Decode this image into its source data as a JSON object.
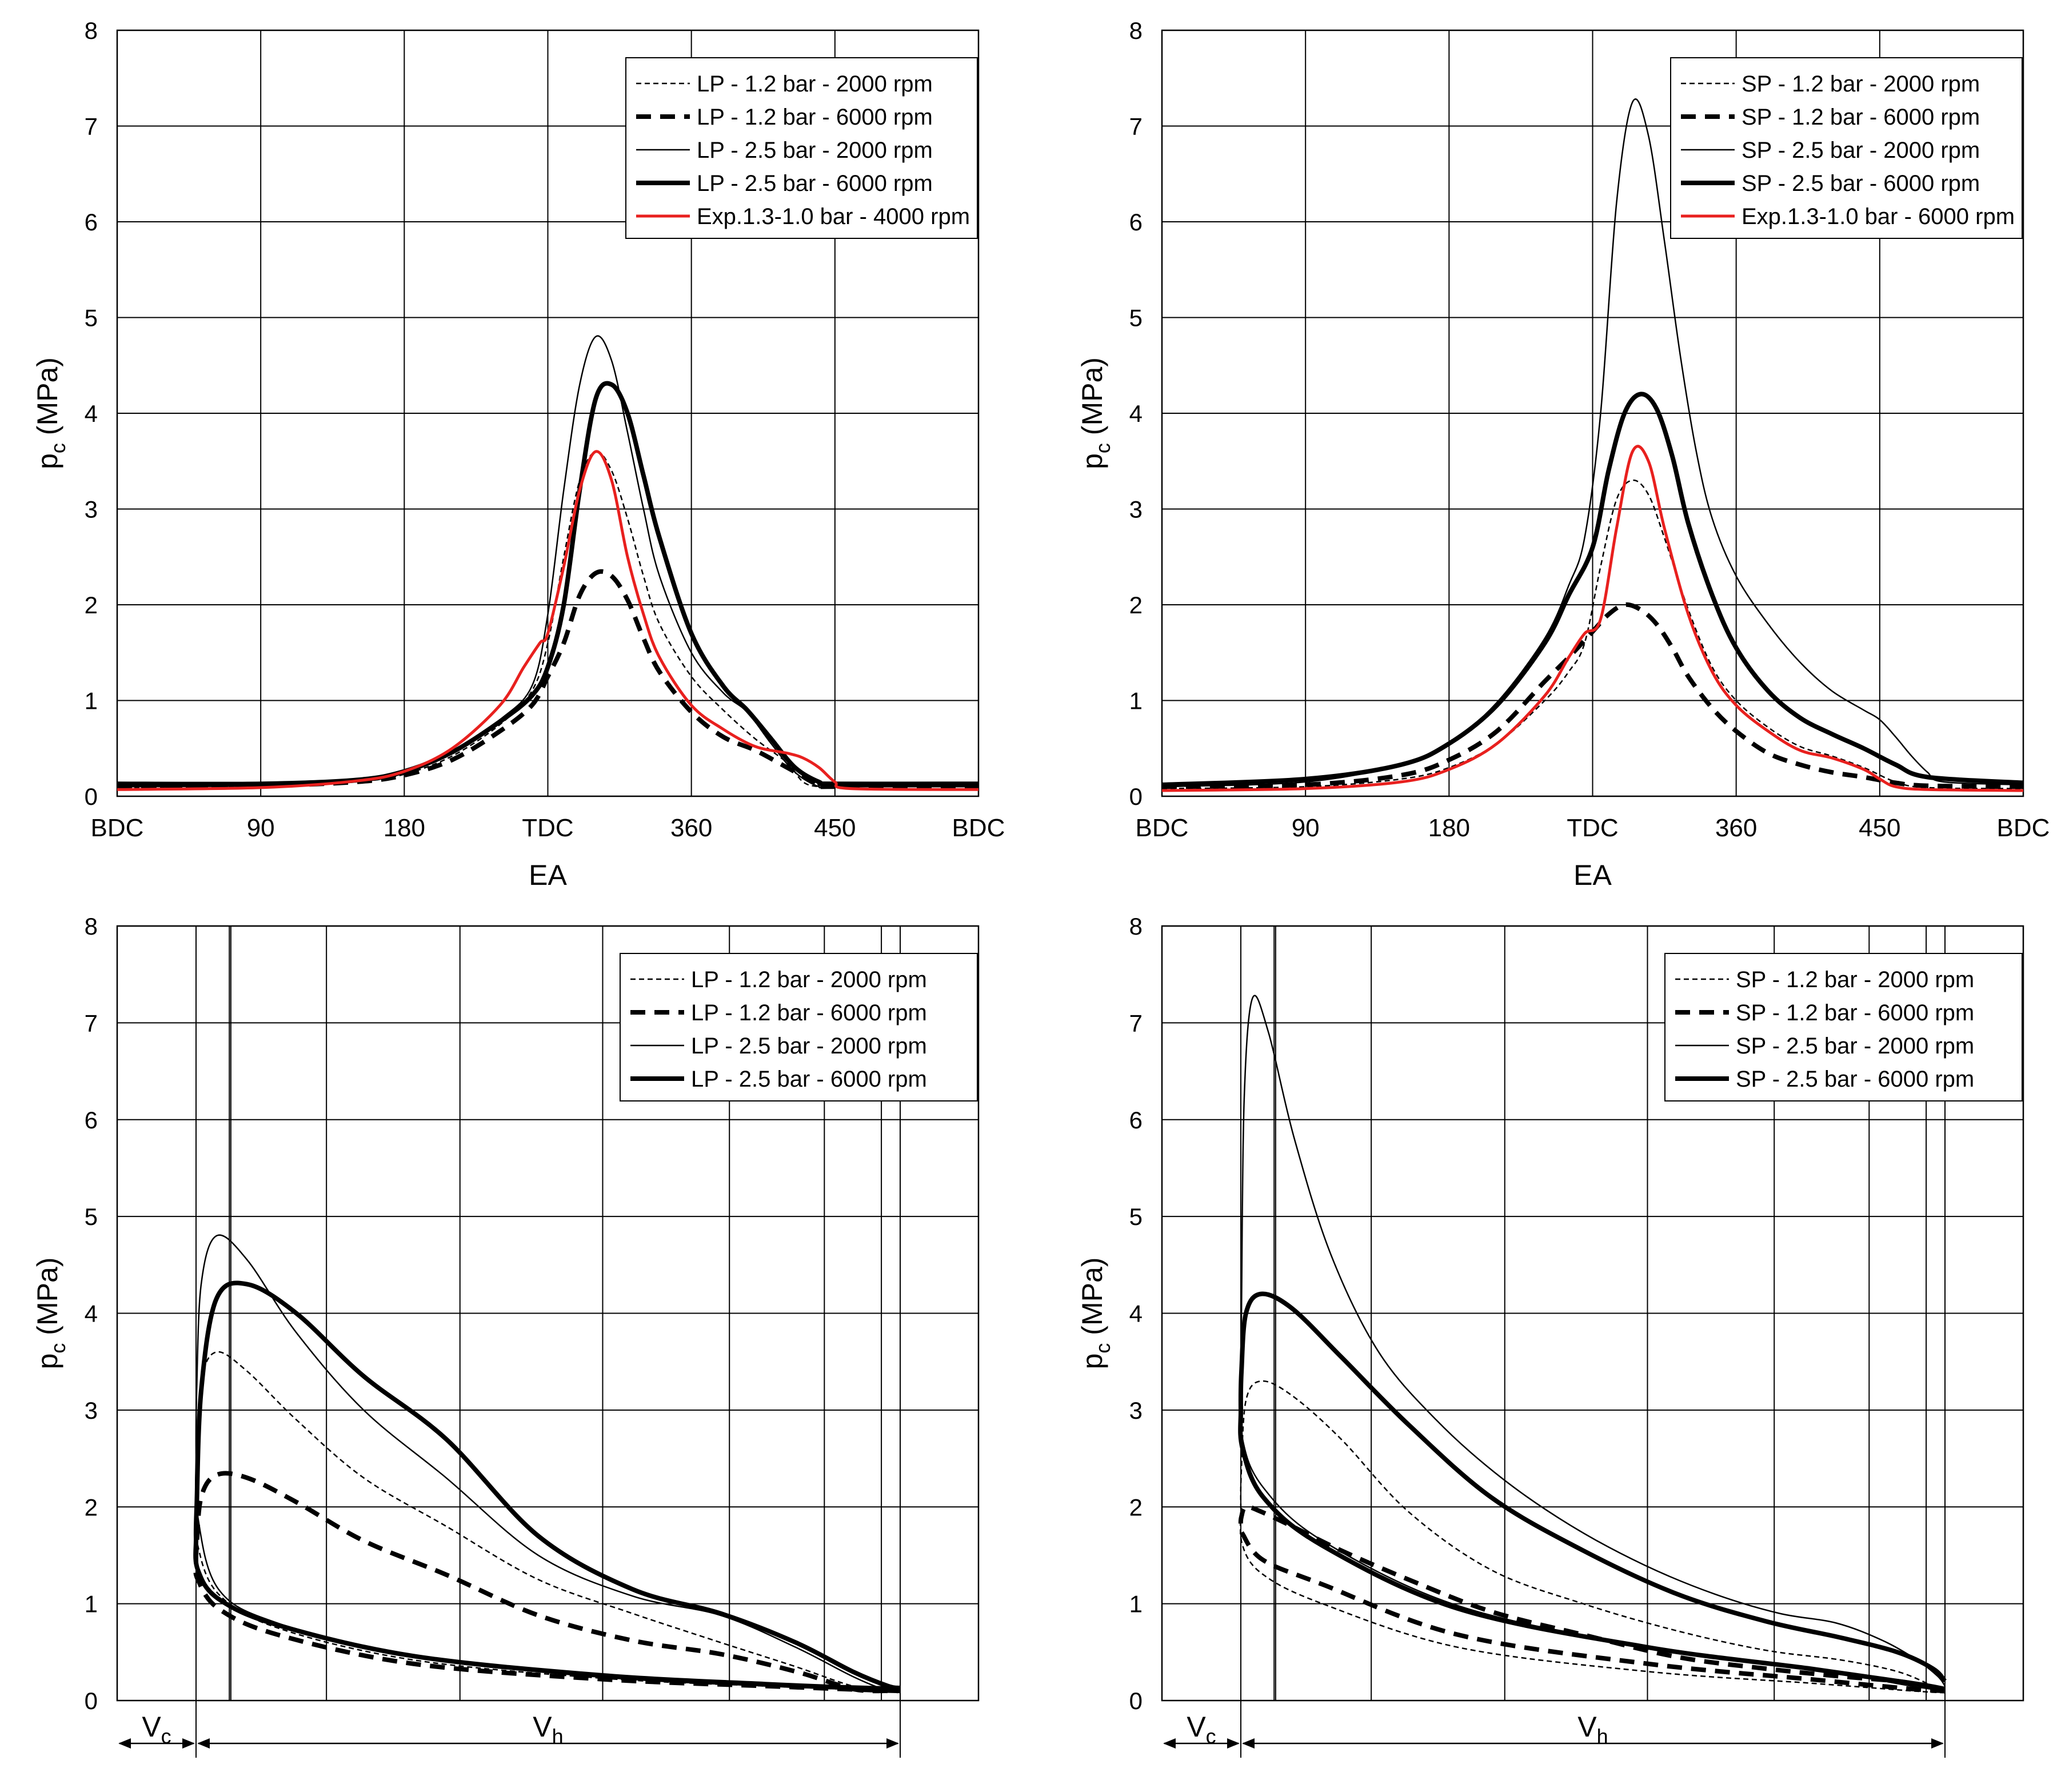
{
  "chart_data": [
    {
      "id": "p1",
      "type": "line",
      "xmode": "angle",
      "ylabel_main": "p",
      "ylabel_sub": "c",
      "ylabel_units": " (MPa)",
      "xlabel": "EA",
      "xlim": [
        0,
        540
      ],
      "ylim": [
        0,
        8
      ],
      "grid": true,
      "xticks": [
        {
          "v": 0,
          "label": "BDC"
        },
        {
          "v": 90,
          "label": "90"
        },
        {
          "v": 180,
          "label": "180"
        },
        {
          "v": 270,
          "label": "TDC"
        },
        {
          "v": 360,
          "label": "360"
        },
        {
          "v": 450,
          "label": "450"
        },
        {
          "v": 540,
          "label": "BDC"
        }
      ],
      "yticks": [
        0,
        1,
        2,
        3,
        4,
        5,
        6,
        7,
        8
      ],
      "legend_position": "top-right",
      "series": [
        {
          "name": "LP - 1.2 bar - 2000 rpm",
          "style": "thin-dashed",
          "x": [
            0,
            90,
            150,
            180,
            210,
            240,
            260,
            270,
            280,
            290,
            300,
            310,
            320,
            330,
            340,
            360,
            380,
            400,
            420,
            430,
            440,
            450,
            540
          ],
          "y": [
            0.09,
            0.1,
            0.15,
            0.23,
            0.42,
            0.75,
            1.1,
            1.6,
            2.5,
            3.3,
            3.6,
            3.4,
            2.9,
            2.3,
            1.8,
            1.25,
            0.9,
            0.6,
            0.35,
            0.15,
            0.1,
            0.1,
            0.1
          ]
        },
        {
          "name": "LP - 1.2 bar - 6000 rpm",
          "style": "thick-dashed",
          "x": [
            0,
            90,
            150,
            180,
            210,
            240,
            260,
            270,
            280,
            290,
            300,
            310,
            320,
            330,
            340,
            360,
            380,
            400,
            420,
            440,
            450,
            540
          ],
          "y": [
            0.1,
            0.11,
            0.15,
            0.22,
            0.38,
            0.68,
            0.95,
            1.25,
            1.6,
            2.1,
            2.33,
            2.3,
            2.05,
            1.65,
            1.3,
            0.88,
            0.62,
            0.48,
            0.3,
            0.12,
            0.1,
            0.1
          ]
        },
        {
          "name": "LP - 2.5 bar - 2000 rpm",
          "style": "thin-solid",
          "x": [
            0,
            90,
            150,
            180,
            210,
            240,
            260,
            270,
            280,
            290,
            300,
            310,
            320,
            330,
            340,
            360,
            380,
            395,
            410,
            425,
            440,
            450,
            540
          ],
          "y": [
            0.1,
            0.11,
            0.15,
            0.24,
            0.45,
            0.8,
            1.15,
            1.9,
            3.2,
            4.3,
            4.8,
            4.55,
            3.8,
            3.0,
            2.3,
            1.5,
            1.08,
            0.88,
            0.55,
            0.25,
            0.1,
            0.1,
            0.1
          ]
        },
        {
          "name": "LP - 2.5 bar - 6000 rpm",
          "style": "thick-solid",
          "x": [
            0,
            90,
            150,
            180,
            210,
            240,
            260,
            270,
            280,
            290,
            300,
            310,
            320,
            330,
            340,
            360,
            380,
            395,
            410,
            425,
            440,
            450,
            540
          ],
          "y": [
            0.13,
            0.13,
            0.17,
            0.26,
            0.46,
            0.78,
            1.05,
            1.35,
            2.0,
            3.2,
            4.15,
            4.3,
            4.0,
            3.35,
            2.7,
            1.7,
            1.15,
            0.9,
            0.6,
            0.3,
            0.15,
            0.13,
            0.13
          ]
        },
        {
          "name": "Exp.1.3-1.0 bar - 4000 rpm",
          "style": "red",
          "x": [
            0,
            90,
            150,
            180,
            210,
            240,
            255,
            265,
            270,
            280,
            290,
            300,
            310,
            320,
            330,
            340,
            360,
            380,
            400,
            420,
            430,
            440,
            450,
            460,
            540
          ],
          "y": [
            0.07,
            0.09,
            0.16,
            0.26,
            0.5,
            0.95,
            1.35,
            1.6,
            1.7,
            2.4,
            3.2,
            3.6,
            3.3,
            2.5,
            1.9,
            1.45,
            0.95,
            0.7,
            0.52,
            0.45,
            0.4,
            0.3,
            0.15,
            0.08,
            0.07
          ]
        }
      ]
    },
    {
      "id": "p2",
      "type": "line",
      "xmode": "angle",
      "ylabel_main": "p",
      "ylabel_sub": "c",
      "ylabel_units": " (MPa)",
      "xlabel": "EA",
      "xlim": [
        0,
        540
      ],
      "ylim": [
        0,
        8
      ],
      "grid": true,
      "xticks": [
        {
          "v": 0,
          "label": "BDC"
        },
        {
          "v": 90,
          "label": "90"
        },
        {
          "v": 180,
          "label": "180"
        },
        {
          "v": 270,
          "label": "TDC"
        },
        {
          "v": 360,
          "label": "360"
        },
        {
          "v": 450,
          "label": "450"
        },
        {
          "v": 540,
          "label": "BDC"
        }
      ],
      "yticks": [
        0,
        1,
        2,
        3,
        4,
        5,
        6,
        7,
        8
      ],
      "legend_position": "top-right",
      "series": [
        {
          "name": "SP - 1.2 bar - 2000 rpm",
          "style": "thin-dashed",
          "x": [
            0,
            90,
            150,
            180,
            210,
            240,
            255,
            265,
            275,
            285,
            295,
            305,
            315,
            330,
            345,
            360,
            380,
            400,
            420,
            440,
            460,
            480,
            540
          ],
          "y": [
            0.08,
            0.1,
            0.18,
            0.3,
            0.55,
            1.0,
            1.3,
            1.6,
            2.4,
            3.1,
            3.3,
            3.15,
            2.7,
            1.95,
            1.35,
            1.0,
            0.72,
            0.52,
            0.42,
            0.3,
            0.15,
            0.09,
            0.08
          ]
        },
        {
          "name": "SP - 1.2 bar - 6000 rpm",
          "style": "thick-dashed",
          "x": [
            0,
            90,
            150,
            180,
            210,
            240,
            255,
            270,
            280,
            290,
            300,
            310,
            320,
            330,
            345,
            360,
            380,
            400,
            420,
            440,
            460,
            480,
            540
          ],
          "y": [
            0.1,
            0.12,
            0.22,
            0.38,
            0.68,
            1.2,
            1.45,
            1.72,
            1.9,
            2.0,
            1.95,
            1.8,
            1.55,
            1.25,
            0.92,
            0.68,
            0.45,
            0.33,
            0.25,
            0.2,
            0.14,
            0.11,
            0.1
          ]
        },
        {
          "name": "SP - 2.5 bar - 2000 rpm",
          "style": "thin-solid",
          "x": [
            0,
            90,
            150,
            180,
            210,
            240,
            255,
            265,
            275,
            285,
            295,
            305,
            315,
            325,
            335,
            345,
            360,
            380,
            400,
            420,
            440,
            450,
            460,
            470,
            480,
            490,
            540
          ],
          "y": [
            0.1,
            0.15,
            0.33,
            0.55,
            0.98,
            1.65,
            2.2,
            2.7,
            4.0,
            6.2,
            7.25,
            6.9,
            5.8,
            4.6,
            3.6,
            2.9,
            2.3,
            1.8,
            1.4,
            1.1,
            0.9,
            0.8,
            0.62,
            0.42,
            0.25,
            0.15,
            0.12
          ]
        },
        {
          "name": "SP - 2.5 bar - 6000 rpm",
          "style": "thick-solid",
          "x": [
            0,
            90,
            150,
            180,
            210,
            240,
            255,
            270,
            280,
            290,
            300,
            310,
            320,
            330,
            345,
            360,
            380,
            400,
            420,
            440,
            460,
            480,
            540
          ],
          "y": [
            0.12,
            0.18,
            0.33,
            0.55,
            0.95,
            1.6,
            2.1,
            2.6,
            3.4,
            4.0,
            4.2,
            4.05,
            3.55,
            2.85,
            2.1,
            1.55,
            1.1,
            0.82,
            0.65,
            0.5,
            0.33,
            0.2,
            0.14
          ]
        },
        {
          "name": "Exp.1.3-1.0 bar - 6000 rpm",
          "style": "red",
          "x": [
            0,
            90,
            150,
            180,
            210,
            240,
            255,
            265,
            275,
            285,
            295,
            305,
            315,
            330,
            345,
            360,
            380,
            400,
            420,
            440,
            450,
            460,
            480,
            540
          ],
          "y": [
            0.06,
            0.08,
            0.15,
            0.28,
            0.55,
            1.05,
            1.45,
            1.7,
            1.85,
            2.8,
            3.6,
            3.5,
            2.8,
            1.9,
            1.3,
            0.95,
            0.68,
            0.48,
            0.4,
            0.28,
            0.18,
            0.1,
            0.07,
            0.06
          ]
        }
      ]
    },
    {
      "id": "p3",
      "type": "line",
      "xmode": "volume",
      "ylabel_main": "p",
      "ylabel_sub": "c",
      "ylabel_units": " (MPa)",
      "xlabel": "",
      "ylim": [
        0,
        8
      ],
      "grid": true,
      "yticks": [
        0,
        1,
        2,
        3,
        4,
        5,
        6,
        7,
        8
      ],
      "vc_label": "V",
      "vc_sub": "c",
      "vh_label": "V",
      "vh_sub": "h",
      "legend_position": "top-right",
      "series": [
        {
          "name": "LP - 1.2 bar - 2000 rpm",
          "style": "thin-dashed",
          "pa": [
            0.1,
            0.11,
            0.15,
            0.23,
            0.42,
            0.75,
            1.1,
            1.6
          ],
          "pb": [
            2.5,
            3.3,
            3.6,
            3.4,
            2.9,
            2.3,
            1.8,
            1.25,
            0.9,
            0.6,
            0.35,
            0.15,
            0.1,
            0.1
          ]
        },
        {
          "name": "LP - 1.2 bar - 6000 rpm",
          "style": "thick-dashed",
          "pa": [
            0.1,
            0.11,
            0.15,
            0.22,
            0.38,
            0.68,
            0.95,
            1.25
          ],
          "pb": [
            1.6,
            2.1,
            2.33,
            2.3,
            2.05,
            1.65,
            1.3,
            0.88,
            0.62,
            0.48,
            0.3,
            0.12,
            0.1,
            0.1
          ]
        },
        {
          "name": "LP - 2.5 bar - 2000 rpm",
          "style": "thin-solid",
          "pa": [
            0.1,
            0.11,
            0.15,
            0.24,
            0.45,
            0.8,
            1.15,
            1.9
          ],
          "pb": [
            3.2,
            4.3,
            4.8,
            4.55,
            3.8,
            3.0,
            2.3,
            1.5,
            1.08,
            0.88,
            0.55,
            0.25,
            0.1,
            0.1
          ]
        },
        {
          "name": "LP - 2.5 bar - 6000 rpm",
          "style": "thick-solid",
          "pa": [
            0.13,
            0.13,
            0.17,
            0.26,
            0.46,
            0.78,
            1.05,
            1.35
          ],
          "pb": [
            2.0,
            3.2,
            4.15,
            4.3,
            4.0,
            3.35,
            2.7,
            1.7,
            1.15,
            0.9,
            0.6,
            0.3,
            0.15,
            0.13
          ]
        }
      ]
    },
    {
      "id": "p4",
      "type": "line",
      "xmode": "volume",
      "ylabel_main": "p",
      "ylabel_sub": "c",
      "ylabel_units": " (MPa)",
      "xlabel": "",
      "ylim": [
        0,
        8
      ],
      "grid": true,
      "yticks": [
        0,
        1,
        2,
        3,
        4,
        5,
        6,
        7,
        8
      ],
      "vc_label": "V",
      "vc_sub": "c",
      "vh_label": "V",
      "vh_sub": "h",
      "legend_position": "top-right",
      "series": [
        {
          "name": "SP - 1.2 bar - 2000 rpm",
          "style": "thin-dashed",
          "pa": [
            0.08,
            0.1,
            0.18,
            0.3,
            0.55,
            1.0,
            1.3,
            1.6
          ],
          "pb": [
            2.4,
            3.1,
            3.3,
            3.15,
            2.7,
            1.95,
            1.35,
            1.0,
            0.72,
            0.52,
            0.42,
            0.3,
            0.15,
            0.09
          ]
        },
        {
          "name": "SP - 1.2 bar - 6000 rpm",
          "style": "thick-dashed",
          "pa": [
            0.1,
            0.12,
            0.22,
            0.38,
            0.68,
            1.2,
            1.45,
            1.72
          ],
          "pb": [
            1.9,
            2.0,
            1.95,
            1.8,
            1.55,
            1.25,
            0.92,
            0.68,
            0.45,
            0.33,
            0.25,
            0.2,
            0.14,
            0.11
          ]
        },
        {
          "name": "SP - 2.5 bar - 2000 rpm",
          "style": "thin-solid",
          "pa": [
            0.1,
            0.15,
            0.33,
            0.55,
            0.98,
            1.65,
            2.2,
            2.7
          ],
          "pb": [
            4.0,
            6.2,
            7.25,
            6.9,
            5.8,
            4.6,
            3.6,
            2.9,
            2.3,
            1.8,
            1.4,
            1.1,
            0.9,
            0.8,
            0.62,
            0.42,
            0.25,
            0.15
          ]
        },
        {
          "name": "SP - 2.5 bar - 6000 rpm",
          "style": "thick-solid",
          "pa": [
            0.12,
            0.18,
            0.33,
            0.55,
            0.95,
            1.6,
            2.1,
            2.6
          ],
          "pb": [
            3.4,
            4.0,
            4.2,
            4.05,
            3.55,
            2.85,
            2.1,
            1.55,
            1.1,
            0.82,
            0.65,
            0.5,
            0.33,
            0.2
          ]
        }
      ]
    }
  ]
}
